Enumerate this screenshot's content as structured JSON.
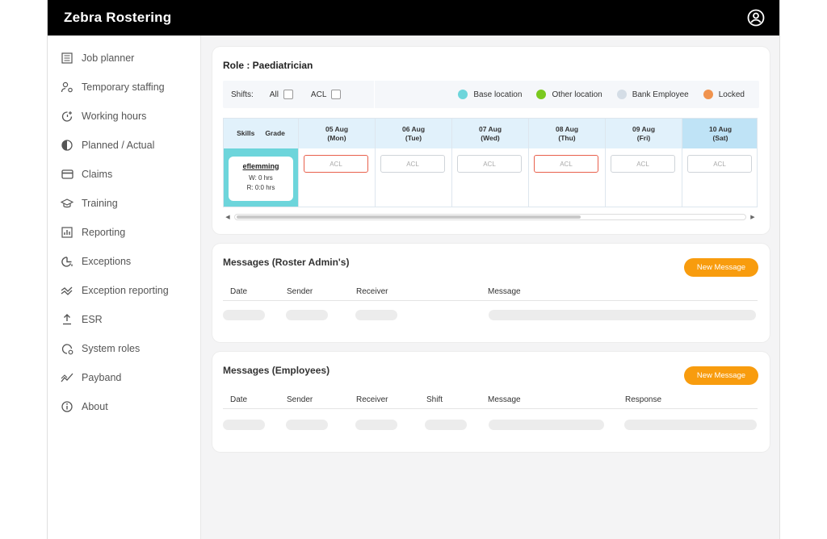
{
  "app": {
    "title": "Zebra Rostering"
  },
  "sidebar": {
    "items": [
      {
        "label": "Job planner",
        "icon": "job-planner-icon"
      },
      {
        "label": "Temporary staffing",
        "icon": "temporary-staffing-icon"
      },
      {
        "label": "Working hours",
        "icon": "working-hours-icon"
      },
      {
        "label": "Planned / Actual",
        "icon": "planned-actual-icon"
      },
      {
        "label": "Claims",
        "icon": "claims-icon"
      },
      {
        "label": "Training",
        "icon": "training-icon"
      },
      {
        "label": "Reporting",
        "icon": "reporting-icon"
      },
      {
        "label": "Exceptions",
        "icon": "exceptions-icon"
      },
      {
        "label": "Exception reporting",
        "icon": "exception-reporting-icon"
      },
      {
        "label": "ESR",
        "icon": "esr-icon"
      },
      {
        "label": "System roles",
        "icon": "system-roles-icon"
      },
      {
        "label": "Payband",
        "icon": "payband-icon"
      },
      {
        "label": "About",
        "icon": "about-icon"
      }
    ]
  },
  "role": {
    "title": "Role : Paediatrician",
    "filters": {
      "label": "Shifts:",
      "all": "All",
      "acl": "ACL"
    },
    "legend": [
      {
        "label": "Base location",
        "color": "#6dd5db"
      },
      {
        "label": "Other location",
        "color": "#7ac91f"
      },
      {
        "label": "Bank Employee",
        "color": "#d4dde6"
      },
      {
        "label": "Locked",
        "color": "#f0934e"
      }
    ],
    "grid": {
      "skills_label": "Skills",
      "grade_label": "Grade",
      "days": [
        {
          "date": "05 Aug",
          "day": "(Mon)",
          "shift": "ACL",
          "alert": true
        },
        {
          "date": "06 Aug",
          "day": "(Tue)",
          "shift": "ACL",
          "alert": false
        },
        {
          "date": "07 Aug",
          "day": "(Wed)",
          "shift": "ACL",
          "alert": false
        },
        {
          "date": "08 Aug",
          "day": "(Thu)",
          "shift": "ACL",
          "alert": true
        },
        {
          "date": "09 Aug",
          "day": "(Fri)",
          "shift": "ACL",
          "alert": false
        },
        {
          "date": "10 Aug",
          "day": "(Sat)",
          "shift": "ACL",
          "alert": false
        }
      ],
      "employee": {
        "name": "eflemming",
        "worked": "W: 0 hrs",
        "rostered": "R: 0:0 hrs"
      }
    }
  },
  "messages_admin": {
    "title": "Messages (Roster Admin's)",
    "button": "New Message",
    "columns": [
      "Date",
      "Sender",
      "Receiver",
      "Message"
    ]
  },
  "messages_employees": {
    "title": "Messages (Employees)",
    "button": "New Message",
    "columns": [
      "Date",
      "Sender",
      "Receiver",
      "Shift",
      "Message",
      "Response"
    ]
  }
}
